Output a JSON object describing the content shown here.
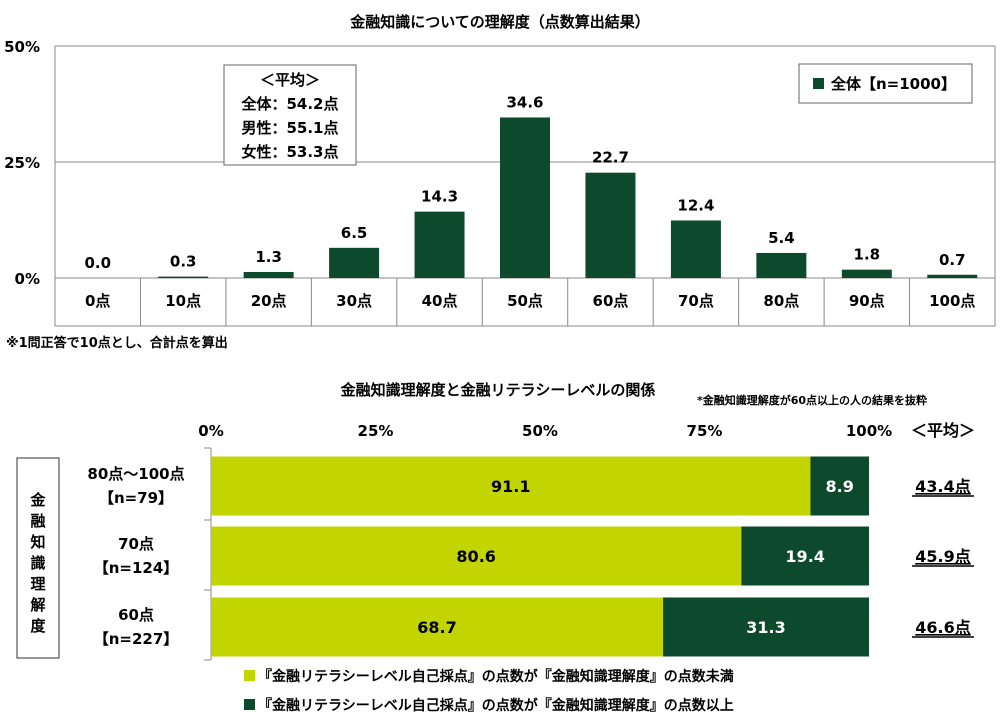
{
  "chart_data": [
    {
      "type": "bar",
      "title": "金融知識についての理解度（点数算出結果）",
      "categories": [
        "0点",
        "10点",
        "20点",
        "30点",
        "40点",
        "50点",
        "60点",
        "70点",
        "80点",
        "90点",
        "100点"
      ],
      "series": [
        {
          "name": "全体【n=1000】",
          "values": [
            0.0,
            0.3,
            1.3,
            6.5,
            14.3,
            34.6,
            22.7,
            12.4,
            5.4,
            1.8,
            0.7
          ]
        }
      ],
      "value_labels": [
        "0.0",
        "0.3",
        "1.3",
        "6.5",
        "14.3",
        "34.6",
        "22.7",
        "12.4",
        "5.4",
        "1.8",
        "0.7"
      ],
      "yticks": [
        "0%",
        "25%",
        "50%"
      ],
      "ylim": [
        0,
        50
      ],
      "grid": true,
      "legend": "top-right",
      "color": "#0d4a2d",
      "average_box": {
        "title": "＜平均＞",
        "lines": [
          "全体：54.2点",
          "男性：55.1点",
          "女性：53.3点"
        ]
      },
      "footnote": "※1問正答で10点とし、合計点を算出"
    },
    {
      "type": "bar",
      "orientation": "horizontal",
      "stacked": true,
      "title": "金融知識理解度と金融リテラシーレベルの関係",
      "note": "*金融知識理解度が60点以上の人の結果を抜粋",
      "row_axis_label": "金融知識理解度",
      "xticks": [
        "0%",
        "25%",
        "50%",
        "75%",
        "100%"
      ],
      "xlim": [
        0,
        100
      ],
      "categories": [
        {
          "line1": "80点～100点",
          "line2": "【n=79】"
        },
        {
          "line1": "70点",
          "line2": "【n=124】"
        },
        {
          "line1": "60点",
          "line2": "【n=227】"
        }
      ],
      "series": [
        {
          "name": "『金融リテラシーレベル自己採点』の点数が『金融知識理解度』の点数未満",
          "color": "#c3d500",
          "values": [
            91.1,
            80.6,
            68.7
          ],
          "labels": [
            "91.1",
            "80.6",
            "68.7"
          ]
        },
        {
          "name": "『金融リテラシーレベル自己採点』の点数が『金融知識理解度』の点数以上",
          "color": "#0d4a2d",
          "values": [
            8.9,
            19.4,
            31.3
          ],
          "labels": [
            "8.9",
            "19.4",
            "31.3"
          ]
        }
      ],
      "average_header": "＜平均＞",
      "averages": [
        "43.4点",
        "45.9点",
        "46.6点"
      ],
      "legend": "bottom"
    }
  ]
}
